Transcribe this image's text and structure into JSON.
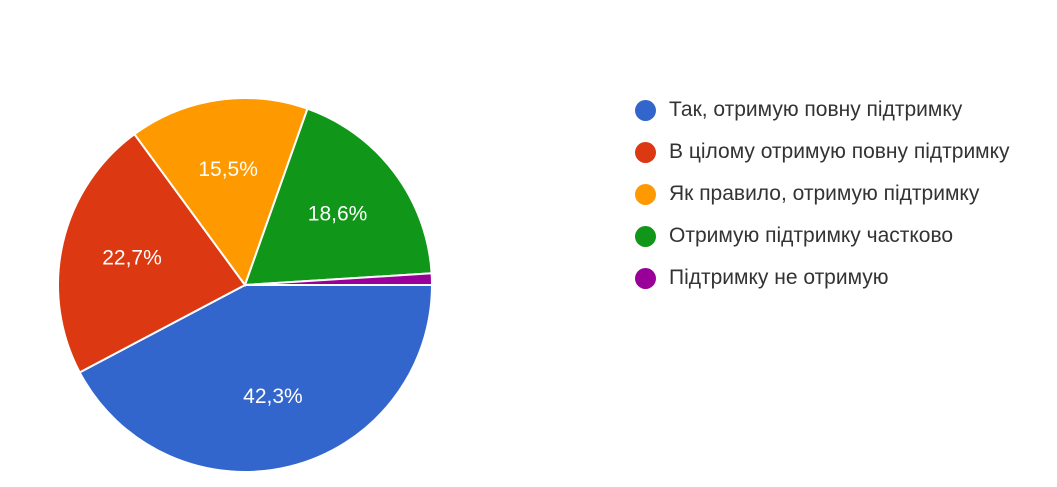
{
  "chart_data": {
    "type": "pie",
    "title": "",
    "legend_position": "right",
    "slices": [
      {
        "label": "Так, отримую повну підтримку",
        "value": 42.3,
        "value_label": "42,3%",
        "color": "#3366cc"
      },
      {
        "label": "В цілому отримую повну підтримку",
        "value": 22.7,
        "value_label": "22,7%",
        "color": "#dc3912"
      },
      {
        "label": "Як правило, отримую підтримку",
        "value": 15.5,
        "value_label": "15,5%",
        "color": "#ff9900"
      },
      {
        "label": "Отримую підтримку частково",
        "value": 18.6,
        "value_label": "18,6%",
        "color": "#109618"
      },
      {
        "label": "Підтримку не отримую",
        "value": 1.0,
        "value_label": "",
        "color": "#990099"
      }
    ]
  }
}
